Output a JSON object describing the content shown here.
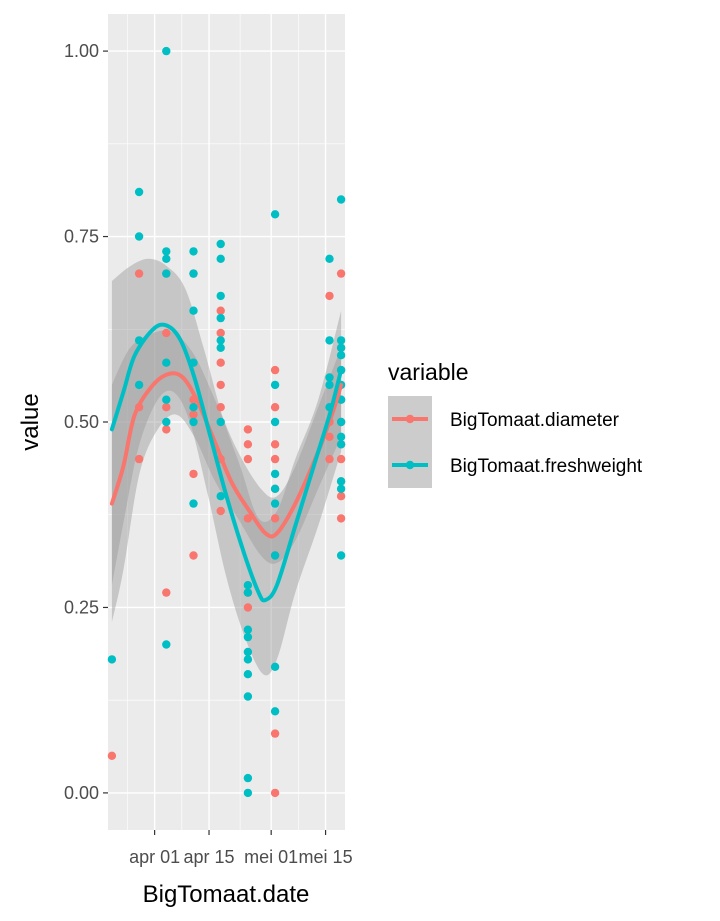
{
  "chart_data": {
    "type": "scatter",
    "xlabel": "BigTomaat.date",
    "ylabel": "value",
    "x_ticks": [
      "apr 01",
      "apr 15",
      "mei 01",
      "mei 15"
    ],
    "y_ticks": [
      "0.00",
      "0.25",
      "0.50",
      "0.75",
      "1.00"
    ],
    "xlim": [
      "2021-03-20",
      "2021-05-20"
    ],
    "ylim": [
      -0.05,
      1.05
    ],
    "grid": true,
    "background": "#ebebeb",
    "legend": {
      "title": "variable",
      "position": "right"
    },
    "smoothing": "loess with confidence band",
    "series": [
      {
        "name": "BigTomaat.diameter",
        "color": "#f8766d",
        "points": [
          [
            "2021-03-21",
            0.05
          ],
          [
            "2021-03-28",
            0.7
          ],
          [
            "2021-03-28",
            0.52
          ],
          [
            "2021-03-28",
            0.45
          ],
          [
            "2021-04-04",
            0.7
          ],
          [
            "2021-04-04",
            0.62
          ],
          [
            "2021-04-04",
            0.52
          ],
          [
            "2021-04-04",
            0.49
          ],
          [
            "2021-04-04",
            0.27
          ],
          [
            "2021-04-11",
            0.7
          ],
          [
            "2021-04-11",
            0.53
          ],
          [
            "2021-04-11",
            0.51
          ],
          [
            "2021-04-11",
            0.43
          ],
          [
            "2021-04-11",
            0.32
          ],
          [
            "2021-04-18",
            0.65
          ],
          [
            "2021-04-18",
            0.62
          ],
          [
            "2021-04-18",
            0.58
          ],
          [
            "2021-04-18",
            0.55
          ],
          [
            "2021-04-18",
            0.52
          ],
          [
            "2021-04-18",
            0.45
          ],
          [
            "2021-04-18",
            0.38
          ],
          [
            "2021-04-25",
            0.49
          ],
          [
            "2021-04-25",
            0.47
          ],
          [
            "2021-04-25",
            0.45
          ],
          [
            "2021-04-25",
            0.37
          ],
          [
            "2021-04-25",
            0.27
          ],
          [
            "2021-04-25",
            0.25
          ],
          [
            "2021-05-02",
            0.57
          ],
          [
            "2021-05-02",
            0.52
          ],
          [
            "2021-05-02",
            0.47
          ],
          [
            "2021-05-02",
            0.45
          ],
          [
            "2021-05-02",
            0.41
          ],
          [
            "2021-05-02",
            0.37
          ],
          [
            "2021-05-02",
            0.32
          ],
          [
            "2021-05-02",
            0.08
          ],
          [
            "2021-05-02",
            0.0
          ],
          [
            "2021-05-16",
            0.67
          ],
          [
            "2021-05-16",
            0.5
          ],
          [
            "2021-05-16",
            0.48
          ],
          [
            "2021-05-16",
            0.45
          ],
          [
            "2021-05-19",
            0.7
          ],
          [
            "2021-05-19",
            0.6
          ],
          [
            "2021-05-19",
            0.57
          ],
          [
            "2021-05-19",
            0.53
          ],
          [
            "2021-05-19",
            0.5
          ],
          [
            "2021-05-19",
            0.47
          ],
          [
            "2021-05-19",
            0.45
          ],
          [
            "2021-05-19",
            0.42
          ],
          [
            "2021-05-19",
            0.4
          ],
          [
            "2021-05-19",
            0.37
          ]
        ],
        "fit": [
          [
            0.0,
            0.39
          ],
          [
            0.05,
            0.44
          ],
          [
            0.1,
            0.51
          ],
          [
            0.18,
            0.55
          ],
          [
            0.25,
            0.565
          ],
          [
            0.31,
            0.56
          ],
          [
            0.37,
            0.53
          ],
          [
            0.44,
            0.48
          ],
          [
            0.52,
            0.42
          ],
          [
            0.6,
            0.38
          ],
          [
            0.67,
            0.35
          ],
          [
            0.72,
            0.35
          ],
          [
            0.8,
            0.39
          ],
          [
            0.9,
            0.46
          ],
          [
            0.96,
            0.51
          ],
          [
            1.0,
            0.55
          ]
        ],
        "band_upper": [
          [
            0.0,
            0.55
          ],
          [
            0.08,
            0.6
          ],
          [
            0.18,
            0.62
          ],
          [
            0.27,
            0.62
          ],
          [
            0.36,
            0.59
          ],
          [
            0.45,
            0.53
          ],
          [
            0.55,
            0.46
          ],
          [
            0.65,
            0.41
          ],
          [
            0.72,
            0.4
          ],
          [
            0.8,
            0.44
          ],
          [
            0.9,
            0.52
          ],
          [
            1.0,
            0.6
          ]
        ],
        "band_lower": [
          [
            0.0,
            0.23
          ],
          [
            0.05,
            0.3
          ],
          [
            0.12,
            0.43
          ],
          [
            0.2,
            0.49
          ],
          [
            0.28,
            0.51
          ],
          [
            0.36,
            0.48
          ],
          [
            0.45,
            0.42
          ],
          [
            0.55,
            0.37
          ],
          [
            0.65,
            0.32
          ],
          [
            0.72,
            0.31
          ],
          [
            0.8,
            0.34
          ],
          [
            0.9,
            0.41
          ],
          [
            1.0,
            0.48
          ]
        ]
      },
      {
        "name": "BigTomaat.freshweight",
        "color": "#00bfc4",
        "points": [
          [
            "2021-03-21",
            0.18
          ],
          [
            "2021-03-28",
            0.81
          ],
          [
            "2021-03-28",
            0.75
          ],
          [
            "2021-03-28",
            0.61
          ],
          [
            "2021-03-28",
            0.55
          ],
          [
            "2021-04-04",
            1.0
          ],
          [
            "2021-04-04",
            0.73
          ],
          [
            "2021-04-04",
            0.72
          ],
          [
            "2021-04-04",
            0.7
          ],
          [
            "2021-04-04",
            0.58
          ],
          [
            "2021-04-04",
            0.53
          ],
          [
            "2021-04-04",
            0.5
          ],
          [
            "2021-04-04",
            0.2
          ],
          [
            "2021-04-11",
            0.73
          ],
          [
            "2021-04-11",
            0.7
          ],
          [
            "2021-04-11",
            0.65
          ],
          [
            "2021-04-11",
            0.58
          ],
          [
            "2021-04-11",
            0.52
          ],
          [
            "2021-04-11",
            0.5
          ],
          [
            "2021-04-11",
            0.39
          ],
          [
            "2021-04-18",
            0.74
          ],
          [
            "2021-04-18",
            0.72
          ],
          [
            "2021-04-18",
            0.67
          ],
          [
            "2021-04-18",
            0.64
          ],
          [
            "2021-04-18",
            0.61
          ],
          [
            "2021-04-18",
            0.6
          ],
          [
            "2021-04-18",
            0.5
          ],
          [
            "2021-04-18",
            0.4
          ],
          [
            "2021-04-25",
            0.28
          ],
          [
            "2021-04-25",
            0.27
          ],
          [
            "2021-04-25",
            0.22
          ],
          [
            "2021-04-25",
            0.21
          ],
          [
            "2021-04-25",
            0.19
          ],
          [
            "2021-04-25",
            0.18
          ],
          [
            "2021-04-25",
            0.16
          ],
          [
            "2021-04-25",
            0.13
          ],
          [
            "2021-04-25",
            0.02
          ],
          [
            "2021-04-25",
            0.0
          ],
          [
            "2021-05-02",
            0.78
          ],
          [
            "2021-05-02",
            0.55
          ],
          [
            "2021-05-02",
            0.5
          ],
          [
            "2021-05-02",
            0.43
          ],
          [
            "2021-05-02",
            0.41
          ],
          [
            "2021-05-02",
            0.39
          ],
          [
            "2021-05-02",
            0.32
          ],
          [
            "2021-05-02",
            0.17
          ],
          [
            "2021-05-02",
            0.11
          ],
          [
            "2021-05-16",
            0.72
          ],
          [
            "2021-05-16",
            0.61
          ],
          [
            "2021-05-16",
            0.56
          ],
          [
            "2021-05-16",
            0.55
          ],
          [
            "2021-05-16",
            0.52
          ],
          [
            "2021-05-19",
            0.8
          ],
          [
            "2021-05-19",
            0.61
          ],
          [
            "2021-05-19",
            0.6
          ],
          [
            "2021-05-19",
            0.59
          ],
          [
            "2021-05-19",
            0.57
          ],
          [
            "2021-05-19",
            0.55
          ],
          [
            "2021-05-19",
            0.53
          ],
          [
            "2021-05-19",
            0.5
          ],
          [
            "2021-05-19",
            0.48
          ],
          [
            "2021-05-19",
            0.47
          ],
          [
            "2021-05-19",
            0.42
          ],
          [
            "2021-05-19",
            0.41
          ],
          [
            "2021-05-19",
            0.32
          ]
        ],
        "fit": [
          [
            0.0,
            0.49
          ],
          [
            0.05,
            0.54
          ],
          [
            0.1,
            0.59
          ],
          [
            0.18,
            0.625
          ],
          [
            0.24,
            0.63
          ],
          [
            0.3,
            0.61
          ],
          [
            0.36,
            0.56
          ],
          [
            0.43,
            0.48
          ],
          [
            0.5,
            0.4
          ],
          [
            0.58,
            0.32
          ],
          [
            0.64,
            0.27
          ],
          [
            0.67,
            0.26
          ],
          [
            0.72,
            0.28
          ],
          [
            0.8,
            0.36
          ],
          [
            0.88,
            0.44
          ],
          [
            0.95,
            0.51
          ],
          [
            1.0,
            0.57
          ]
        ],
        "band_upper": [
          [
            0.0,
            0.69
          ],
          [
            0.08,
            0.71
          ],
          [
            0.16,
            0.72
          ],
          [
            0.24,
            0.71
          ],
          [
            0.32,
            0.68
          ],
          [
            0.4,
            0.6
          ],
          [
            0.48,
            0.51
          ],
          [
            0.56,
            0.44
          ],
          [
            0.64,
            0.37
          ],
          [
            0.72,
            0.38
          ],
          [
            0.8,
            0.45
          ],
          [
            0.9,
            0.53
          ],
          [
            1.0,
            0.65
          ]
        ],
        "band_lower": [
          [
            0.0,
            0.28
          ],
          [
            0.06,
            0.38
          ],
          [
            0.12,
            0.47
          ],
          [
            0.2,
            0.53
          ],
          [
            0.27,
            0.54
          ],
          [
            0.34,
            0.5
          ],
          [
            0.42,
            0.4
          ],
          [
            0.5,
            0.29
          ],
          [
            0.58,
            0.21
          ],
          [
            0.66,
            0.16
          ],
          [
            0.72,
            0.18
          ],
          [
            0.8,
            0.27
          ],
          [
            0.9,
            0.36
          ],
          [
            1.0,
            0.46
          ]
        ]
      }
    ]
  }
}
